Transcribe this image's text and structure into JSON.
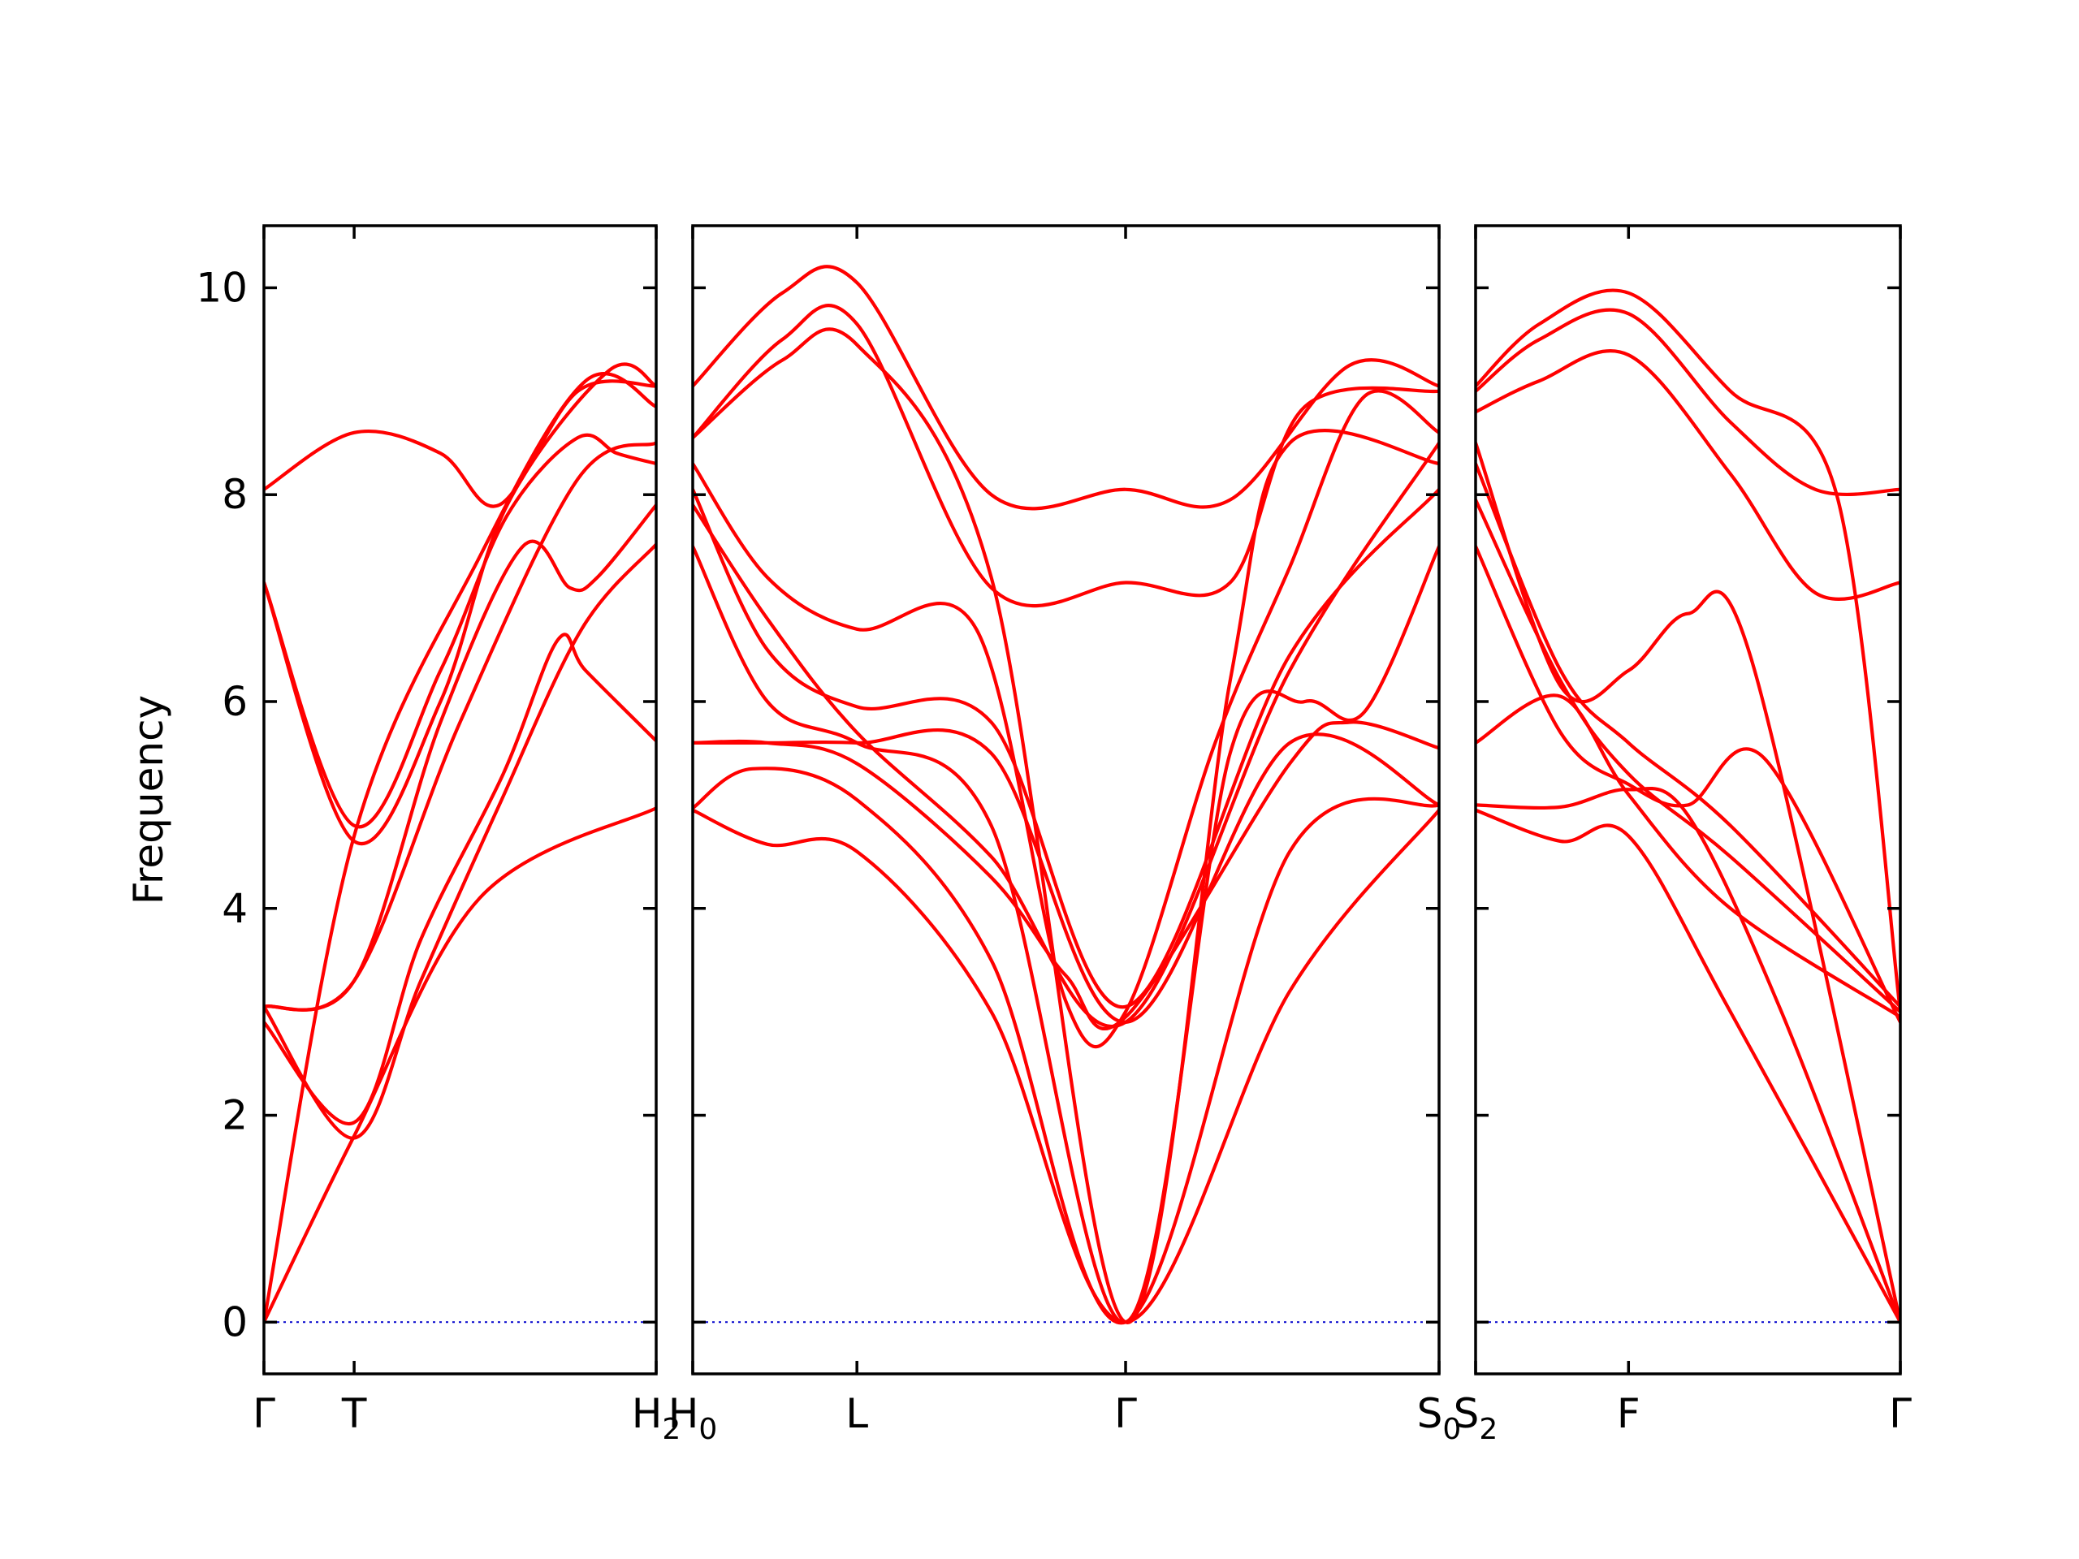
{
  "chart_data": {
    "type": "line",
    "title": "",
    "xlabel": "",
    "ylabel": "Frequency",
    "ylim": [
      -0.5,
      10.6
    ],
    "yticks": [
      0,
      2,
      4,
      6,
      8,
      10
    ],
    "colors": {
      "bands": "#ff0000",
      "zero_line": "#0000cc",
      "axes": "#000000"
    },
    "grid": false,
    "legend": "none",
    "panels": [
      {
        "name": "Γ-T-H2",
        "xrange": [
          0,
          1
        ],
        "xticks": [
          {
            "x": 0,
            "label": "Γ",
            "sub": ""
          },
          {
            "x": 0.23,
            "label": "T",
            "sub": ""
          },
          {
            "x": 1,
            "label": "H",
            "sub": "2"
          }
        ],
        "bands": [
          {
            "x": [
              0,
              0.23,
              0.55,
              1
            ],
            "y": [
              0,
              1.8,
              4.1,
              4.97
            ]
          },
          {
            "x": [
              0,
              0.23,
              0.55,
              0.82,
              1
            ],
            "y": [
              0,
              4.7,
              7.4,
              9.1,
              8.85
            ]
          },
          {
            "x": [
              0,
              0.23,
              0.4,
              0.61,
              0.75,
              0.82,
              1
            ],
            "y": [
              2.9,
              1.93,
              3.7,
              5.3,
              6.6,
              6.3,
              5.62
            ]
          },
          {
            "x": [
              0,
              0.23,
              0.4,
              0.6,
              0.81,
              1
            ],
            "y": [
              3.05,
              1.78,
              3.3,
              5.0,
              6.7,
              7.52
            ]
          },
          {
            "x": [
              0,
              0.23,
              0.5,
              0.8,
              1
            ],
            "y": [
              3.05,
              3.3,
              5.8,
              8.15,
              8.5
            ]
          },
          {
            "x": [
              0,
              0.23,
              0.45,
              0.66,
              0.78,
              0.85,
              1
            ],
            "y": [
              3.05,
              3.3,
              5.8,
              7.5,
              7.1,
              7.2,
              7.9
            ]
          },
          {
            "x": [
              0,
              0.23,
              0.45,
              0.62,
              0.8,
              0.9,
              1
            ],
            "y": [
              7.15,
              4.8,
              6.3,
              7.8,
              8.55,
              8.4,
              8.3
            ]
          },
          {
            "x": [
              0,
              0.23,
              0.45,
              0.62,
              0.88,
              1
            ],
            "y": [
              7.15,
              4.65,
              6.0,
              7.9,
              9.2,
              9.05
            ]
          },
          {
            "x": [
              0,
              0.23,
              0.45,
              0.6,
              0.8,
              1
            ],
            "y": [
              8.05,
              8.6,
              8.4,
              7.9,
              9.0,
              9.05
            ]
          }
        ]
      },
      {
        "name": "H0-L-Γ-S0",
        "xrange": [
          0,
          1
        ],
        "xticks": [
          {
            "x": 0,
            "label": "H",
            "sub": "0"
          },
          {
            "x": 0.22,
            "label": "L",
            "sub": ""
          },
          {
            "x": 0.58,
            "label": "Γ",
            "sub": ""
          },
          {
            "x": 1,
            "label": "S",
            "sub": "0"
          }
        ],
        "bands": [
          {
            "x": [
              0,
              0.1,
              0.22,
              0.4,
              0.58,
              0.8,
              1
            ],
            "y": [
              4.95,
              4.62,
              4.55,
              3.0,
              0,
              3.2,
              4.95
            ]
          },
          {
            "x": [
              0,
              0.08,
              0.22,
              0.4,
              0.58,
              0.8,
              1
            ],
            "y": [
              4.97,
              5.35,
              5.05,
              3.5,
              0,
              4.55,
              5.0
            ]
          },
          {
            "x": [
              0,
              0.1,
              0.22,
              0.4,
              0.5,
              0.58,
              0.8,
              0.88,
              1
            ],
            "y": [
              5.6,
              5.6,
              5.4,
              4.3,
              3.35,
              2.95,
              5.4,
              5.8,
              5.55
            ]
          },
          {
            "x": [
              0,
              0.1,
              0.22,
              0.4,
              0.58,
              0.8,
              1
            ],
            "y": [
              5.6,
              5.6,
              5.6,
              5.5,
              2.9,
              5.6,
              5.0
            ]
          },
          {
            "x": [
              0,
              0.1,
              0.22,
              0.4,
              0.58,
              0.72,
              0.82,
              0.9,
              1
            ],
            "y": [
              7.5,
              6.0,
              5.6,
              4.8,
              0,
              5.5,
              6.0,
              5.9,
              7.5
            ]
          },
          {
            "x": [
              0,
              0.1,
              0.22,
              0.4,
              0.58,
              0.8,
              1
            ],
            "y": [
              8.05,
              6.5,
              5.95,
              5.8,
              3.05,
              6.45,
              8.05
            ]
          },
          {
            "x": [
              0,
              0.1,
              0.22,
              0.4,
              0.58,
              0.8,
              1
            ],
            "y": [
              7.9,
              6.8,
              5.7,
              4.5,
              2.9,
              6.3,
              8.5
            ]
          },
          {
            "x": [
              0,
              0.1,
              0.22,
              0.38,
              0.5,
              0.58,
              0.7,
              0.8,
              0.9,
              1
            ],
            "y": [
              8.3,
              7.2,
              6.7,
              6.7,
              3.1,
              3.0,
              5.6,
              7.3,
              8.95,
              8.6
            ]
          },
          {
            "x": [
              0,
              0.12,
              0.22,
              0.4,
              0.58,
              0.72,
              0.8,
              1
            ],
            "y": [
              8.55,
              9.3,
              9.45,
              7.2,
              0,
              6.2,
              8.5,
              8.3
            ]
          },
          {
            "x": [
              0,
              0.12,
              0.22,
              0.4,
              0.58,
              0.72,
              0.82,
              1
            ],
            "y": [
              8.55,
              9.5,
              9.65,
              7.1,
              7.15,
              7.15,
              8.85,
              9.0
            ]
          },
          {
            "x": [
              0,
              0.12,
              0.22,
              0.4,
              0.58,
              0.72,
              0.88,
              1
            ],
            "y": [
              9.05,
              9.95,
              10.05,
              8.0,
              8.05,
              7.95,
              9.25,
              9.05
            ]
          }
        ]
      },
      {
        "name": "S2-F-Γ",
        "xrange": [
          0,
          1
        ],
        "xticks": [
          {
            "x": 0,
            "label": "S",
            "sub": "2"
          },
          {
            "x": 0.36,
            "label": "F",
            "sub": ""
          },
          {
            "x": 1,
            "label": "Γ",
            "sub": ""
          }
        ],
        "bands": [
          {
            "x": [
              0,
              0.2,
              0.36,
              0.6,
              1
            ],
            "y": [
              4.95,
              4.65,
              4.7,
              3.0,
              0
            ]
          },
          {
            "x": [
              0,
              0.2,
              0.36,
              0.5,
              0.72,
              1
            ],
            "y": [
              5.0,
              4.98,
              5.15,
              4.9,
              3.0,
              0
            ]
          },
          {
            "x": [
              0,
              0.2,
              0.36,
              0.6,
              1
            ],
            "y": [
              5.6,
              6.05,
              5.1,
              4.0,
              2.95
            ]
          },
          {
            "x": [
              0,
              0.2,
              0.36,
              0.5,
              0.68,
              1
            ],
            "y": [
              7.5,
              5.7,
              5.2,
              5.0,
              5.45,
              2.9
            ]
          },
          {
            "x": [
              0,
              0.2,
              0.36,
              0.6,
              1
            ],
            "y": [
              7.95,
              6.2,
              5.3,
              4.5,
              3.0
            ]
          },
          {
            "x": [
              0,
              0.2,
              0.36,
              0.6,
              1
            ],
            "y": [
              8.3,
              6.3,
              5.6,
              4.8,
              3.05
            ]
          },
          {
            "x": [
              0,
              0.2,
              0.36,
              0.5,
              0.65,
              1
            ],
            "y": [
              8.5,
              6.15,
              6.3,
              6.85,
              6.4,
              0
            ]
          },
          {
            "x": [
              0,
              0.15,
              0.36,
              0.6,
              0.8,
              1
            ],
            "y": [
              8.8,
              9.1,
              9.35,
              8.2,
              7.05,
              7.15
            ]
          },
          {
            "x": [
              0,
              0.15,
              0.36,
              0.6,
              0.8,
              1
            ],
            "y": [
              9.0,
              9.5,
              9.75,
              8.7,
              8.05,
              8.05
            ]
          },
          {
            "x": [
              0,
              0.15,
              0.36,
              0.6,
              0.85,
              1
            ],
            "y": [
              9.05,
              9.65,
              9.95,
              9.0,
              8.0,
              3.0
            ]
          }
        ]
      }
    ]
  }
}
